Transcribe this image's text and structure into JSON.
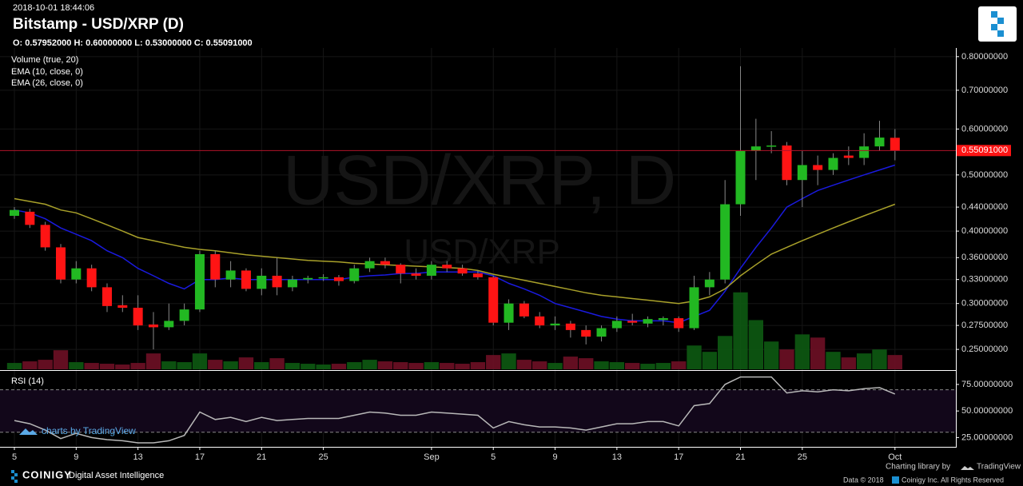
{
  "chart_data": {
    "type": "candlestick",
    "timestamp": "2018-10-01 18:44:06",
    "title": "Bitstamp - USD/XRP (D)",
    "ohlc_text": "O: 0.57952000 H: 0.60000000 L: 0.53000000 C: 0.55091000",
    "legend": [
      "Volume (true, 20)",
      "EMA (10, close, 0)",
      "EMA (26, close, 0)"
    ],
    "watermark": [
      "USD/XRP, D",
      "USD/XRP"
    ],
    "log_scale": true,
    "categories": [
      "5",
      null,
      null,
      null,
      "9",
      null,
      null,
      null,
      "13",
      null,
      null,
      null,
      "17",
      null,
      null,
      null,
      "21",
      null,
      null,
      null,
      "25",
      null,
      null,
      null,
      null,
      null,
      null,
      "Sep",
      null,
      null,
      null,
      "5",
      null,
      null,
      null,
      "9",
      null,
      null,
      null,
      "13",
      null,
      null,
      null,
      "17",
      null,
      null,
      null,
      "21",
      null,
      null,
      null,
      "25",
      null,
      null,
      null,
      null,
      null,
      "Oct"
    ],
    "open": [
      0.425,
      0.432,
      0.41,
      0.375,
      0.33,
      0.345,
      0.32,
      0.298,
      0.295,
      0.276,
      0.273,
      0.28,
      0.293,
      0.365,
      0.33,
      0.342,
      0.318,
      0.335,
      0.32,
      0.33,
      0.332,
      0.333,
      0.328,
      0.345,
      0.355,
      0.35,
      0.338,
      0.335,
      0.35,
      0.345,
      0.338,
      0.333,
      0.278,
      0.3,
      0.285,
      0.275,
      0.277,
      0.27,
      0.263,
      0.272,
      0.28,
      0.277,
      0.281,
      0.283,
      0.272,
      0.32,
      0.33,
      0.445,
      0.55,
      0.56,
      0.562,
      0.49,
      0.52,
      0.51,
      0.54,
      0.535,
      0.56,
      0.57952
    ],
    "high": [
      0.44,
      0.437,
      0.415,
      0.38,
      0.355,
      0.35,
      0.325,
      0.31,
      0.31,
      0.29,
      0.3,
      0.3,
      0.37,
      0.37,
      0.355,
      0.345,
      0.345,
      0.36,
      0.335,
      0.335,
      0.337,
      0.336,
      0.35,
      0.36,
      0.36,
      0.352,
      0.345,
      0.355,
      0.355,
      0.35,
      0.342,
      0.335,
      0.305,
      0.303,
      0.29,
      0.285,
      0.28,
      0.275,
      0.275,
      0.285,
      0.288,
      0.285,
      0.285,
      0.285,
      0.335,
      0.34,
      0.49,
      0.77,
      0.625,
      0.595,
      0.57,
      0.55,
      0.54,
      0.545,
      0.56,
      0.59,
      0.62,
      0.6
    ],
    "low": [
      0.42,
      0.405,
      0.37,
      0.325,
      0.325,
      0.315,
      0.29,
      0.29,
      0.27,
      0.25,
      0.27,
      0.275,
      0.29,
      0.32,
      0.32,
      0.315,
      0.31,
      0.31,
      0.315,
      0.325,
      0.328,
      0.322,
      0.325,
      0.34,
      0.345,
      0.325,
      0.33,
      0.33,
      0.34,
      0.335,
      0.33,
      0.275,
      0.27,
      0.283,
      0.272,
      0.27,
      0.262,
      0.255,
      0.258,
      0.268,
      0.275,
      0.273,
      0.275,
      0.268,
      0.27,
      0.31,
      0.325,
      0.425,
      0.49,
      0.545,
      0.48,
      0.44,
      0.48,
      0.5,
      0.52,
      0.52,
      0.55,
      0.53
    ],
    "close": [
      0.435,
      0.41,
      0.375,
      0.33,
      0.345,
      0.32,
      0.297,
      0.295,
      0.275,
      0.273,
      0.28,
      0.293,
      0.365,
      0.33,
      0.342,
      0.318,
      0.335,
      0.32,
      0.33,
      0.332,
      0.333,
      0.328,
      0.345,
      0.355,
      0.35,
      0.338,
      0.335,
      0.35,
      0.345,
      0.338,
      0.333,
      0.278,
      0.3,
      0.285,
      0.275,
      0.277,
      0.27,
      0.263,
      0.272,
      0.28,
      0.278,
      0.282,
      0.283,
      0.272,
      0.32,
      0.33,
      0.445,
      0.55,
      0.56,
      0.562,
      0.49,
      0.52,
      0.51,
      0.535,
      0.535,
      0.56,
      0.58,
      0.55091
    ],
    "up_color": "#22b822",
    "down_color": "#ff1414",
    "series": [
      {
        "name": "EMA (10, close, 0)",
        "color": "#1a1adf",
        "values": [
          0.435,
          0.43,
          0.42,
          0.405,
          0.395,
          0.385,
          0.37,
          0.36,
          0.345,
          0.335,
          0.325,
          0.318,
          0.33,
          0.33,
          0.332,
          0.33,
          0.33,
          0.33,
          0.33,
          0.33,
          0.33,
          0.33,
          0.333,
          0.335,
          0.336,
          0.338,
          0.338,
          0.34,
          0.34,
          0.34,
          0.34,
          0.335,
          0.325,
          0.318,
          0.31,
          0.3,
          0.295,
          0.29,
          0.285,
          0.282,
          0.28,
          0.28,
          0.28,
          0.278,
          0.285,
          0.292,
          0.315,
          0.345,
          0.375,
          0.405,
          0.44,
          0.455,
          0.47,
          0.48,
          0.49,
          0.5,
          0.51,
          0.52
        ]
      },
      {
        "name": "EMA (26, close, 0)",
        "color": "#a9a12a",
        "values": [
          0.455,
          0.45,
          0.445,
          0.435,
          0.43,
          0.42,
          0.41,
          0.4,
          0.39,
          0.385,
          0.38,
          0.375,
          0.372,
          0.37,
          0.367,
          0.364,
          0.362,
          0.36,
          0.358,
          0.356,
          0.355,
          0.354,
          0.352,
          0.351,
          0.35,
          0.349,
          0.348,
          0.347,
          0.346,
          0.345,
          0.342,
          0.337,
          0.333,
          0.329,
          0.325,
          0.321,
          0.317,
          0.313,
          0.31,
          0.308,
          0.306,
          0.304,
          0.302,
          0.3,
          0.303,
          0.308,
          0.318,
          0.335,
          0.35,
          0.365,
          0.375,
          0.385,
          0.395,
          0.405,
          0.415,
          0.425,
          0.435,
          0.445
        ]
      }
    ],
    "volume": [
      8,
      10,
      12,
      24,
      9,
      8,
      7,
      6,
      8,
      20,
      10,
      9,
      20,
      12,
      10,
      15,
      9,
      14,
      8,
      7,
      6,
      7,
      9,
      12,
      10,
      9,
      8,
      9,
      8,
      7,
      9,
      18,
      20,
      12,
      10,
      8,
      16,
      14,
      10,
      9,
      8,
      7,
      8,
      10,
      30,
      22,
      42,
      97,
      62,
      35,
      25,
      44,
      40,
      22,
      15,
      20,
      25,
      18
    ],
    "vlim": [
      0,
      400
    ],
    "volume_up_color": "#0d5a12",
    "volume_down_color": "#6e1025",
    "ylim": [
      0.231,
      0.815
    ],
    "yticks": [
      {
        "value": 0.8,
        "label": "0.80000000"
      },
      {
        "value": 0.7,
        "label": "0.70000000"
      },
      {
        "value": 0.6,
        "label": "0.60000000"
      },
      {
        "value": 0.5,
        "label": "0.50000000"
      },
      {
        "value": 0.44,
        "label": "0.44000000"
      },
      {
        "value": 0.4,
        "label": "0.40000000"
      },
      {
        "value": 0.36,
        "label": "0.36000000"
      },
      {
        "value": 0.33,
        "label": "0.33000000"
      },
      {
        "value": 0.3,
        "label": "0.30000000"
      },
      {
        "value": 0.275,
        "label": "0.27500000"
      },
      {
        "value": 0.25,
        "label": "0.25000000"
      }
    ],
    "last_price": {
      "value": 0.55091,
      "label": "0.55091000"
    },
    "grid": true,
    "rsi": {
      "name": "RSI (14)",
      "color": "#b8b8b8",
      "values": [
        41,
        38,
        32,
        24,
        29,
        25,
        23,
        22,
        20,
        20,
        22,
        27,
        49,
        42,
        44,
        40,
        44,
        41,
        42,
        43,
        43,
        43,
        46,
        49,
        48,
        46,
        46,
        49,
        48,
        47,
        46,
        34,
        40,
        37,
        35,
        35,
        34,
        32,
        35,
        38,
        38,
        40,
        40,
        36,
        55,
        57,
        75,
        82,
        82,
        82,
        67,
        69,
        68,
        70,
        69,
        71,
        72,
        66
      ],
      "ylim": [
        17,
        87
      ],
      "yticks": [
        {
          "value": 75,
          "label": "75.00000000"
        },
        {
          "value": 50,
          "label": "50.00000000"
        },
        {
          "value": 25,
          "label": "25.00000000"
        }
      ],
      "bands": [
        30,
        70
      ]
    }
  },
  "branding": {
    "tradingview": "charts by TradingView"
  },
  "footer": {
    "logo": "COINIGY",
    "tagline": "Digital Asset Intelligence",
    "charting": "Charting library by",
    "tv": "TradingView",
    "data": "Data © 2018",
    "rights": "Coinigy Inc. All Rights Reserved"
  }
}
